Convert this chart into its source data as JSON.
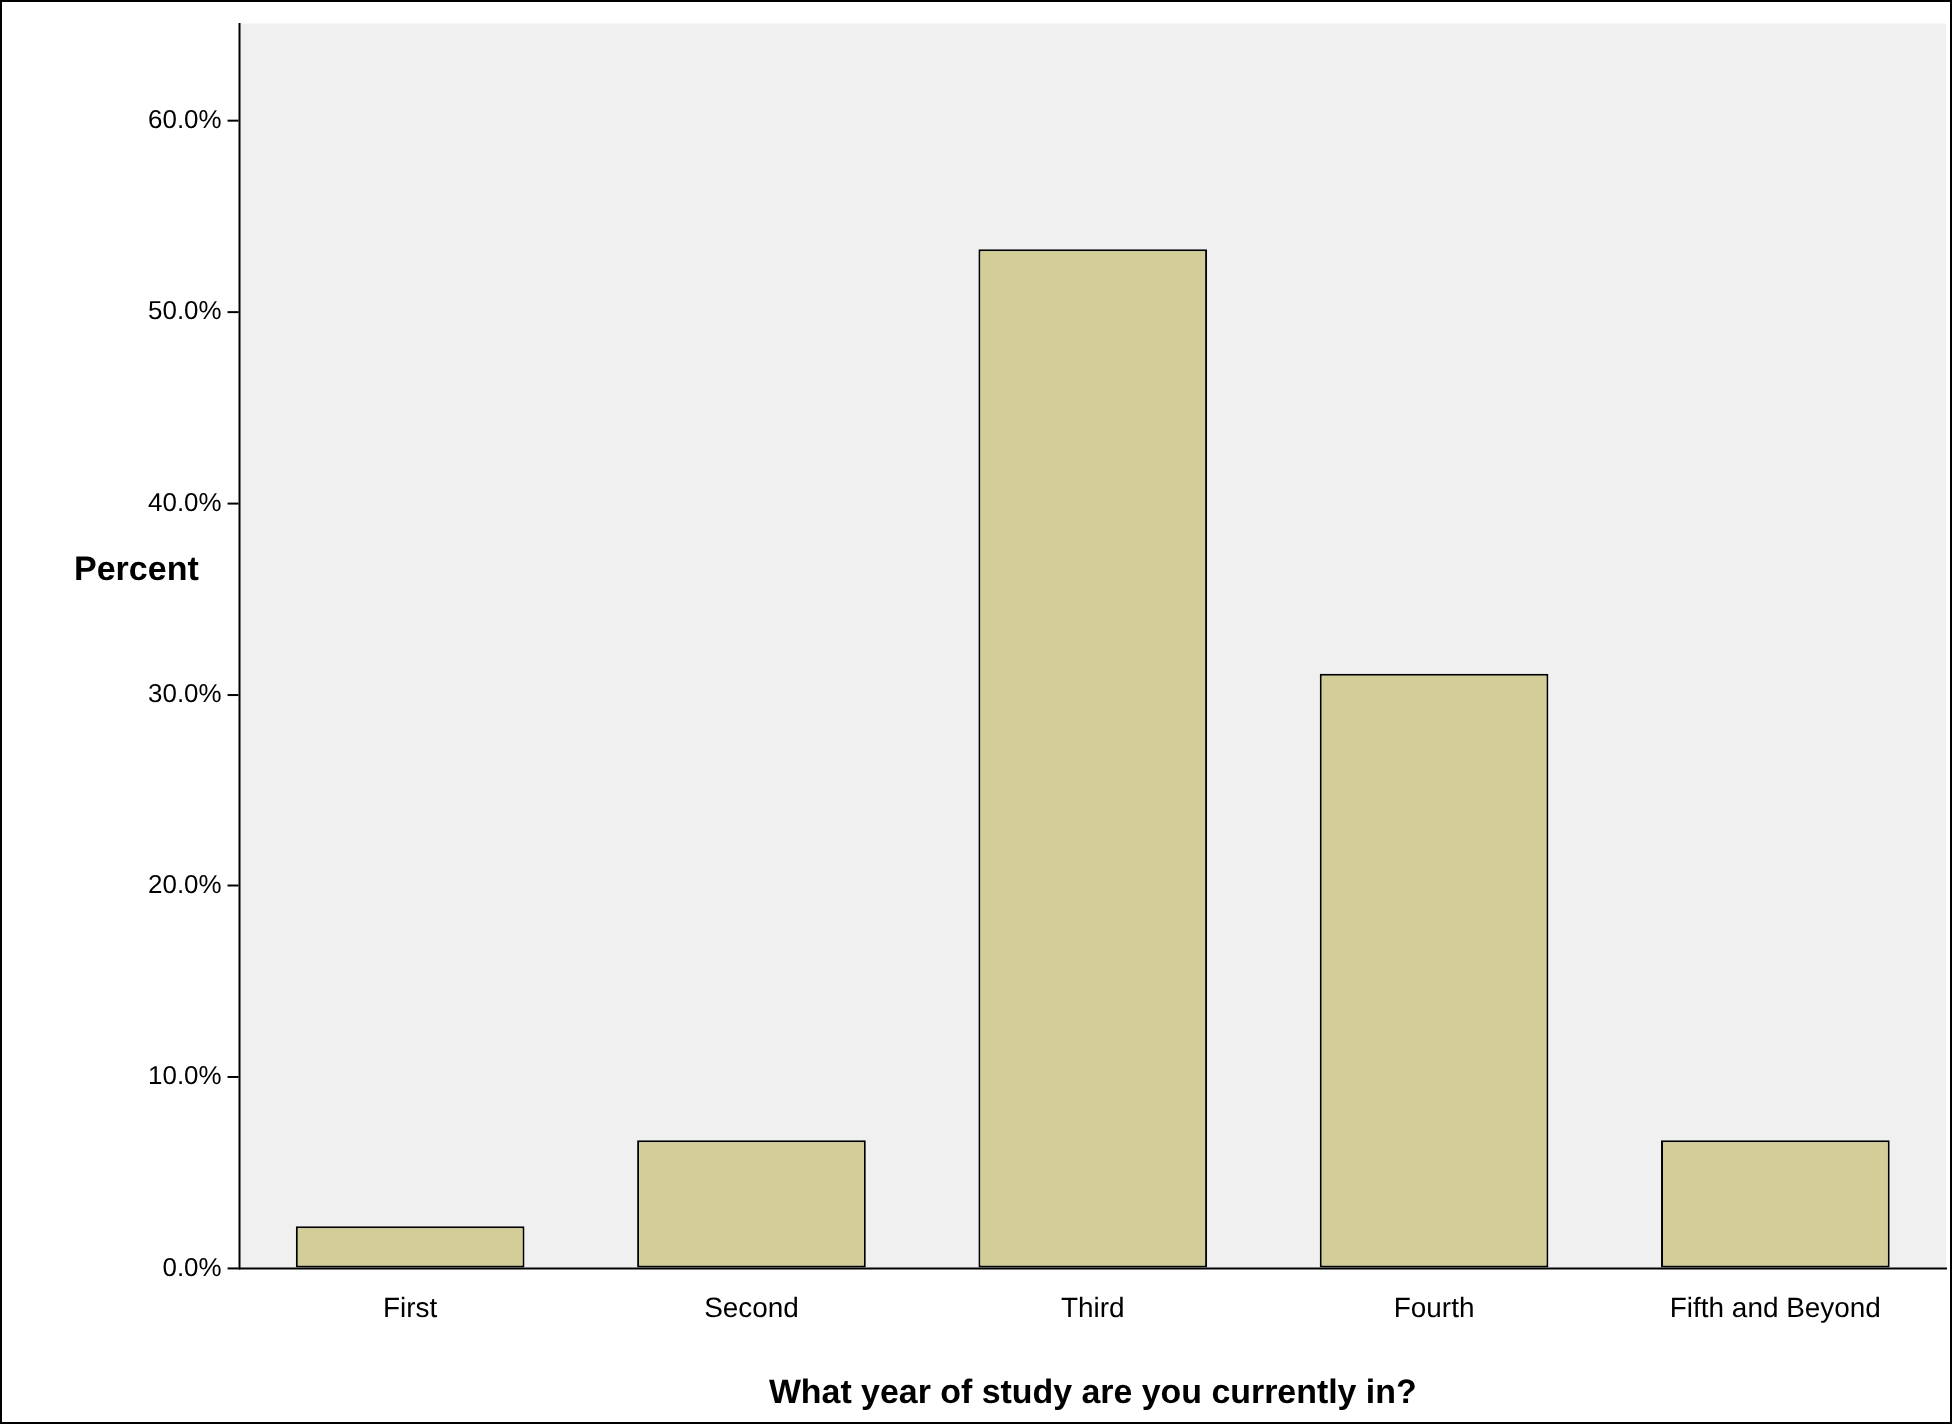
{
  "chart_data": {
    "type": "bar",
    "xlabel": "What year of study are you currently in?",
    "ylabel": "Percent",
    "categories": [
      "First",
      "Second",
      "Third",
      "Fourth",
      "Fifth and Beyond"
    ],
    "values": [
      2.2,
      6.7,
      53.3,
      31.1,
      6.7
    ],
    "color": "#d3ce97",
    "ylim": [
      0,
      65.1
    ],
    "yticks": [
      {
        "value": 0,
        "label": "0.0%"
      },
      {
        "value": 10,
        "label": "10.0%"
      },
      {
        "value": 20,
        "label": "20.0%"
      },
      {
        "value": 30,
        "label": "30.0%"
      },
      {
        "value": 40,
        "label": "40.0%"
      },
      {
        "value": 50,
        "label": "50.0%"
      },
      {
        "value": 60,
        "label": "60.0%"
      }
    ],
    "grid": false,
    "legend": false
  }
}
